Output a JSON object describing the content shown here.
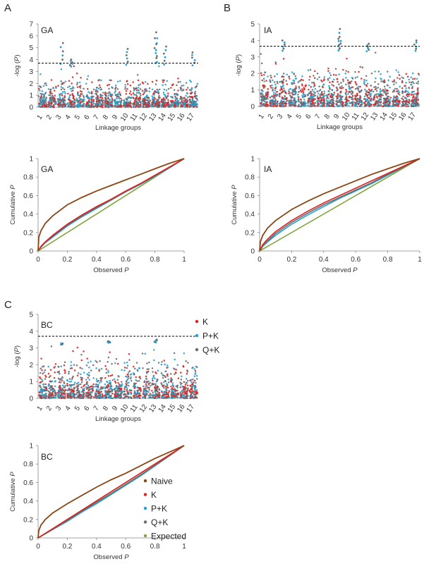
{
  "panel_letters": [
    "A",
    "B",
    "C"
  ],
  "colors": {
    "naive": "#8B4513",
    "K": "#E02020",
    "PK": "#1FA3D4",
    "QK": "#6B6B6B",
    "expected": "#7FA33A",
    "threshold": "#000000"
  },
  "chart_data": [
    {
      "id": "manhattan_GA",
      "panel": "A",
      "type": "scatter",
      "title": "GA",
      "xlabel": "Linkage groups",
      "ylabel_prefix": "-log (",
      "ylabel_var": "P",
      "ylabel_suffix": ")",
      "ylim": [
        0,
        7
      ],
      "yticks": [
        0,
        1,
        2,
        3,
        4,
        5,
        6,
        7
      ],
      "categories": [
        "1",
        "2",
        "3",
        "4",
        "5",
        "6",
        "7",
        "8",
        "9",
        "10",
        "11",
        "12",
        "13",
        "14",
        "15",
        "16",
        "17"
      ],
      "threshold": 3.7,
      "peaks": [
        {
          "group": "3",
          "value": 5.4
        },
        {
          "group": "4",
          "value": 4.0
        },
        {
          "group": "10",
          "value": 4.9
        },
        {
          "group": "13",
          "value": 6.3
        },
        {
          "group": "13",
          "value": 5.8
        },
        {
          "group": "14",
          "value": 5.1
        },
        {
          "group": "17",
          "value": 4.6
        }
      ],
      "series": [
        {
          "name": "K"
        },
        {
          "name": "P+K"
        },
        {
          "name": "Q+K"
        }
      ]
    },
    {
      "id": "manhattan_IA",
      "panel": "B",
      "type": "scatter",
      "title": "IA",
      "xlabel": "Linkage groups",
      "ylabel_prefix": "-log (",
      "ylabel_var": "P",
      "ylabel_suffix": ")",
      "ylim": [
        0,
        5
      ],
      "yticks": [
        0,
        1,
        2,
        3,
        4,
        5
      ],
      "categories": [
        "1",
        "2",
        "3",
        "4",
        "5",
        "6",
        "7",
        "8",
        "9",
        "10",
        "11",
        "12",
        "13",
        "14",
        "15",
        "16",
        "17"
      ],
      "threshold": 3.65,
      "peaks": [
        {
          "group": "3",
          "value": 4.0
        },
        {
          "group": "9",
          "value": 4.7
        },
        {
          "group": "9",
          "value": 4.1
        },
        {
          "group": "12",
          "value": 3.8
        },
        {
          "group": "17",
          "value": 4.0
        }
      ],
      "series": [
        {
          "name": "K"
        },
        {
          "name": "P+K"
        },
        {
          "name": "Q+K"
        }
      ]
    },
    {
      "id": "manhattan_BC",
      "panel": "C",
      "type": "scatter",
      "title": "BC",
      "xlabel": "Linkage groups",
      "ylabel_prefix": "-log (",
      "ylabel_var": "P",
      "ylabel_suffix": ")",
      "ylim": [
        0,
        5
      ],
      "yticks": [
        0,
        1,
        2,
        3,
        4,
        5
      ],
      "categories": [
        "1",
        "2",
        "3",
        "4",
        "5",
        "6",
        "7",
        "8",
        "9",
        "10",
        "11",
        "12",
        "13",
        "14",
        "15",
        "16",
        "17"
      ],
      "threshold": 3.7,
      "peaks": [
        {
          "group": "3",
          "value": 3.2
        },
        {
          "group": "8",
          "value": 3.4
        },
        {
          "group": "13",
          "value": 3.5
        }
      ],
      "legend": [
        "K",
        "P+K",
        "Q+K"
      ],
      "series": [
        {
          "name": "K"
        },
        {
          "name": "P+K"
        },
        {
          "name": "Q+K"
        }
      ]
    },
    {
      "id": "qq_GA",
      "panel": "A",
      "type": "line",
      "title": "GA",
      "xlabel_text": "Observed ",
      "xlabel_var": "P",
      "ylabel_text": "Cumulative ",
      "ylabel_var": "P",
      "xlim": [
        0,
        1
      ],
      "ylim": [
        0,
        1
      ],
      "xticks": [
        "0",
        "0.2",
        "0.4",
        "0.6",
        "0.8",
        "1"
      ],
      "yticks": [
        "0",
        "0.2",
        "0.4",
        "0.6",
        "0.8",
        "1"
      ],
      "series": [
        {
          "name": "Naive",
          "color_key": "naive",
          "x": [
            0,
            0.005,
            0.02,
            0.05,
            0.1,
            0.2,
            0.3,
            0.4,
            0.5,
            0.6,
            0.7,
            0.8,
            0.9,
            1
          ],
          "y": [
            0,
            0.15,
            0.22,
            0.3,
            0.38,
            0.5,
            0.58,
            0.65,
            0.71,
            0.77,
            0.83,
            0.89,
            0.95,
            1
          ]
        },
        {
          "name": "K",
          "color_key": "K",
          "x": [
            0,
            0.02,
            0.05,
            0.1,
            0.2,
            0.3,
            0.4,
            0.5,
            0.6,
            0.7,
            0.8,
            0.9,
            1
          ],
          "y": [
            0,
            0.05,
            0.1,
            0.17,
            0.29,
            0.39,
            0.48,
            0.56,
            0.65,
            0.73,
            0.82,
            0.91,
            1
          ]
        },
        {
          "name": "P+K",
          "color_key": "PK",
          "x": [
            0,
            0.02,
            0.05,
            0.1,
            0.2,
            0.3,
            0.4,
            0.5,
            0.6,
            0.7,
            0.8,
            0.9,
            1
          ],
          "y": [
            0,
            0.04,
            0.09,
            0.15,
            0.27,
            0.37,
            0.46,
            0.55,
            0.64,
            0.72,
            0.81,
            0.9,
            1
          ]
        },
        {
          "name": "Q+K",
          "color_key": "QK",
          "x": [
            0,
            0.02,
            0.05,
            0.1,
            0.2,
            0.3,
            0.4,
            0.5,
            0.6,
            0.7,
            0.8,
            0.9,
            1
          ],
          "y": [
            0,
            0.045,
            0.095,
            0.16,
            0.28,
            0.38,
            0.47,
            0.555,
            0.645,
            0.725,
            0.815,
            0.905,
            1
          ]
        },
        {
          "name": "Expected",
          "color_key": "expected",
          "x": [
            0,
            1
          ],
          "y": [
            0,
            1
          ]
        }
      ]
    },
    {
      "id": "qq_IA",
      "panel": "B",
      "type": "line",
      "title": "IA",
      "xlabel_text": "Observed ",
      "xlabel_var": "P",
      "ylabel_text": "Cumulative ",
      "ylabel_var": "P",
      "xlim": [
        0,
        1
      ],
      "ylim": [
        0,
        1
      ],
      "xticks": [
        "0",
        "0.2",
        "0.4",
        "0.6",
        "0.8",
        "1"
      ],
      "yticks": [
        "0",
        "0.2",
        "0.4",
        "0.6",
        "0.8",
        "1"
      ],
      "series": [
        {
          "name": "Naive",
          "color_key": "naive",
          "x": [
            0,
            0.005,
            0.02,
            0.05,
            0.1,
            0.2,
            0.3,
            0.4,
            0.5,
            0.6,
            0.7,
            0.8,
            0.9,
            1
          ],
          "y": [
            0,
            0.1,
            0.17,
            0.25,
            0.33,
            0.45,
            0.54,
            0.62,
            0.69,
            0.76,
            0.83,
            0.89,
            0.95,
            1
          ]
        },
        {
          "name": "K",
          "color_key": "K",
          "x": [
            0,
            0.02,
            0.05,
            0.1,
            0.2,
            0.3,
            0.4,
            0.5,
            0.6,
            0.7,
            0.8,
            0.9,
            1
          ],
          "y": [
            0,
            0.07,
            0.13,
            0.21,
            0.33,
            0.43,
            0.52,
            0.6,
            0.68,
            0.76,
            0.84,
            0.92,
            1
          ]
        },
        {
          "name": "P+K",
          "color_key": "PK",
          "x": [
            0,
            0.02,
            0.05,
            0.1,
            0.2,
            0.3,
            0.4,
            0.5,
            0.6,
            0.7,
            0.8,
            0.9,
            1
          ],
          "y": [
            0,
            0.05,
            0.1,
            0.17,
            0.29,
            0.39,
            0.48,
            0.57,
            0.65,
            0.73,
            0.82,
            0.91,
            1
          ]
        },
        {
          "name": "Q+K",
          "color_key": "QK",
          "x": [
            0,
            0.02,
            0.05,
            0.1,
            0.2,
            0.3,
            0.4,
            0.5,
            0.6,
            0.7,
            0.8,
            0.9,
            1
          ],
          "y": [
            0,
            0.06,
            0.11,
            0.19,
            0.31,
            0.41,
            0.5,
            0.58,
            0.66,
            0.74,
            0.83,
            0.91,
            1
          ]
        },
        {
          "name": "Expected",
          "color_key": "expected",
          "x": [
            0,
            1
          ],
          "y": [
            0,
            1
          ]
        }
      ]
    },
    {
      "id": "qq_BC",
      "panel": "C",
      "type": "line",
      "title": "BC",
      "xlabel_text": "Observed ",
      "xlabel_var": "P",
      "ylabel_text": "Cumulative ",
      "ylabel_var": "P",
      "xlim": [
        0,
        1
      ],
      "ylim": [
        0,
        1
      ],
      "xticks": [
        "0",
        "0.2",
        "0.4",
        "0.6",
        "0.8",
        "1"
      ],
      "yticks": [
        "0",
        "0.2",
        "0.4",
        "0.6",
        "0.8",
        "1"
      ],
      "legend": [
        "Naive",
        "K",
        "P+K",
        "Q+K",
        "Expected"
      ],
      "series": [
        {
          "name": "Naive",
          "color_key": "naive",
          "x": [
            0,
            0.005,
            0.02,
            0.05,
            0.1,
            0.2,
            0.3,
            0.4,
            0.5,
            0.6,
            0.7,
            0.8,
            0.9,
            1
          ],
          "y": [
            0,
            0.08,
            0.14,
            0.2,
            0.27,
            0.37,
            0.46,
            0.55,
            0.63,
            0.7,
            0.78,
            0.86,
            0.93,
            1
          ]
        },
        {
          "name": "K",
          "color_key": "K",
          "x": [
            0,
            0.2,
            0.4,
            0.6,
            0.8,
            1
          ],
          "y": [
            0,
            0.2,
            0.4,
            0.6,
            0.8,
            1
          ]
        },
        {
          "name": "P+K",
          "color_key": "PK",
          "x": [
            0,
            0.1,
            0.2,
            0.3,
            0.4,
            0.5,
            0.6,
            0.7,
            0.8,
            0.9,
            1
          ],
          "y": [
            0,
            0.09,
            0.18,
            0.28,
            0.37,
            0.47,
            0.57,
            0.67,
            0.78,
            0.89,
            1
          ]
        },
        {
          "name": "Q+K",
          "color_key": "QK",
          "x": [
            0,
            0.1,
            0.2,
            0.3,
            0.4,
            0.5,
            0.6,
            0.7,
            0.8,
            0.9,
            1
          ],
          "y": [
            0,
            0.095,
            0.19,
            0.29,
            0.385,
            0.48,
            0.58,
            0.68,
            0.785,
            0.89,
            1
          ]
        },
        {
          "name": "Expected",
          "color_key": "expected",
          "x": [
            0,
            1
          ],
          "y": [
            0,
            1
          ]
        }
      ]
    }
  ]
}
